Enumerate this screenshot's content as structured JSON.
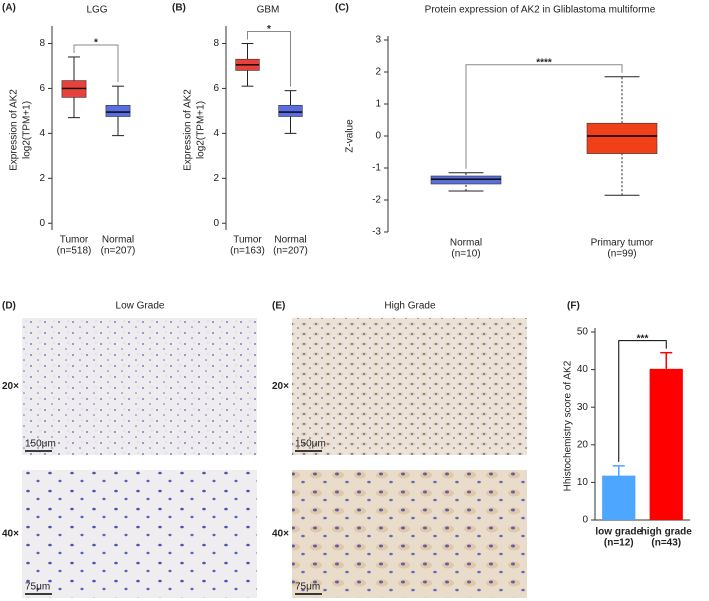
{
  "chart_data": [
    {
      "type": "box",
      "panel_label": "(A)",
      "title": "LGG",
      "y_label": [
        "Expression of AK2",
        "log2(TPM+1)"
      ],
      "categories": [
        "Tumor",
        "Normal"
      ],
      "n_labels": [
        "(n=518)",
        "(n=207)"
      ],
      "colors": [
        "#e8413c",
        "#5b6ee0"
      ],
      "boxes": [
        {
          "whisker_low": 4.7,
          "q1": 5.6,
          "median": 6.0,
          "q3": 6.35,
          "whisker_high": 7.4
        },
        {
          "whisker_low": 3.9,
          "q1": 4.75,
          "median": 4.95,
          "q3": 5.25,
          "whisker_high": 6.1
        }
      ],
      "ylim": [
        -0.3,
        8.6
      ],
      "yticks": [
        0,
        2,
        4,
        6,
        8
      ],
      "annotation": "*",
      "annotation_color": "#ff0000"
    },
    {
      "type": "box",
      "panel_label": "(B)",
      "title": "GBM",
      "y_label": [
        "Expression of AK2",
        "log2(TPM+1)"
      ],
      "categories": [
        "Tumor",
        "Normal"
      ],
      "n_labels": [
        "(n=163)",
        "(n=207)"
      ],
      "colors": [
        "#e8413c",
        "#5b6ee0"
      ],
      "boxes": [
        {
          "whisker_low": 6.1,
          "q1": 6.8,
          "median": 7.05,
          "q3": 7.3,
          "whisker_high": 8.0
        },
        {
          "whisker_low": 4.0,
          "q1": 4.75,
          "median": 4.95,
          "q3": 5.25,
          "whisker_high": 5.9
        }
      ],
      "ylim": [
        -0.3,
        8.6
      ],
      "yticks": [
        0,
        2,
        4,
        6,
        8
      ],
      "annotation": "*",
      "annotation_color": "#ff0000"
    },
    {
      "type": "box",
      "panel_label": "(C)",
      "title": "Protein expression of AK2 in Gliblastoma multiforme",
      "y_label": [
        "Z-value"
      ],
      "categories": [
        "Normal",
        "Primary tumor"
      ],
      "n_labels": [
        "(n=10)",
        "(n=99)"
      ],
      "colors": [
        "#5a6fd6",
        "#f0401a"
      ],
      "boxes": [
        {
          "whisker_low": -1.72,
          "q1": -1.5,
          "median": -1.35,
          "q3": -1.25,
          "whisker_high": -1.15
        },
        {
          "whisker_low": -1.85,
          "q1": -0.55,
          "median": 0,
          "q3": 0.4,
          "whisker_high": 1.85
        }
      ],
      "ylim": [
        -3,
        3
      ],
      "yticks": [
        -3,
        -2,
        -1,
        0,
        1,
        2,
        3
      ],
      "annotation": "****",
      "annotation_color": "#ff0000"
    },
    {
      "type": "bar",
      "panel_label": "(F)",
      "y_label": [
        "Hhistochemistry score of AK2"
      ],
      "categories": [
        "low grade",
        "high grade"
      ],
      "n_labels": [
        "(n=12)",
        "(n=43)"
      ],
      "values": [
        11.8,
        40.2
      ],
      "errors": [
        2.6,
        4.3
      ],
      "colors": [
        "#4da6ff",
        "#ff0000"
      ],
      "ylim": [
        0,
        50
      ],
      "yticks": [
        0,
        10,
        20,
        30,
        40,
        50
      ],
      "annotation": "***",
      "annotation_color": "#000000"
    }
  ],
  "images": {
    "panels": [
      {
        "label": "(D)",
        "title": "Low Grade",
        "scale_bars": [
          "150μm",
          "75μm"
        ]
      },
      {
        "label": "(E)",
        "title": "High Grade",
        "scale_bars": [
          "150μm",
          "75μm"
        ]
      }
    ],
    "magnifications": [
      "20×",
      "40×"
    ]
  }
}
